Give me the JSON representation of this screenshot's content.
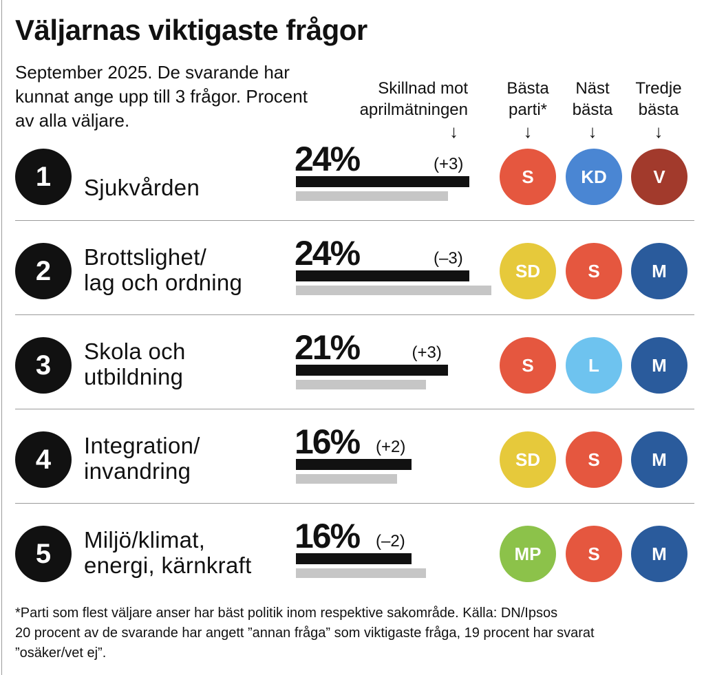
{
  "title": "Väljarnas viktigaste frågor",
  "subtitle": "September 2025. De svarande har kunnat ange upp till 3 frågor. Procent av alla väljare.",
  "headers": {
    "change_line1": "Skillnad mot",
    "change_line2": "aprilmätningen",
    "best_line1": "Bästa",
    "best_line2": "parti*",
    "second_line1": "Näst",
    "second_line2": "bästa",
    "third_line1": "Tredje",
    "third_line2": "bästa",
    "arrow": "↓"
  },
  "party_colors": {
    "S": "#e5573f",
    "KD": "#4a86d3",
    "V": "#a23a2c",
    "SD": "#e6c93b",
    "M": "#2a5b9c",
    "L": "#6ec3ef",
    "MP": "#8cc24a"
  },
  "chart_data": {
    "type": "bar",
    "title": "Väljarnas viktigaste frågor",
    "unit": "%",
    "series": [
      {
        "name": "September 2025",
        "color": "#111111"
      },
      {
        "name": "April (föregående mätning)",
        "color": "#c6c6c6"
      }
    ],
    "rows": [
      {
        "rank": "1",
        "issue_line1": "Sjukvården",
        "issue_line2": "",
        "value": 24,
        "value_label": "24%",
        "change": "(+3)",
        "previous": 21,
        "best": "S",
        "second": "KD",
        "third": "V"
      },
      {
        "rank": "2",
        "issue_line1": "Brottslighet/",
        "issue_line2": "lag och ordning",
        "value": 24,
        "value_label": "24%",
        "change": "(–3)",
        "previous": 27,
        "best": "SD",
        "second": "S",
        "third": "M"
      },
      {
        "rank": "3",
        "issue_line1": "Skola och",
        "issue_line2": "utbildning",
        "value": 21,
        "value_label": "21%",
        "change": "(+3)",
        "previous": 18,
        "best": "S",
        "second": "L",
        "third": "M"
      },
      {
        "rank": "4",
        "issue_line1": "Integration/",
        "issue_line2": "invandring",
        "value": 16,
        "value_label": "16%",
        "change": "(+2)",
        "previous": 14,
        "best": "SD",
        "second": "S",
        "third": "M"
      },
      {
        "rank": "5",
        "issue_line1": "Miljö/klimat,",
        "issue_line2": "energi, kärnkraft",
        "value": 16,
        "value_label": "16%",
        "change": "(–2)",
        "previous": 18,
        "best": "MP",
        "second": "S",
        "third": "M"
      }
    ]
  },
  "footnote": {
    "line1": "*Parti som flest väljare anser har bäst politik inom respektive sakområde. Källa: DN/Ipsos",
    "line2": "20 procent av de svarande har angett ”annan fråga” som viktigaste fråga, 19 procent har svarat",
    "line3": "”osäker/vet ej”."
  }
}
